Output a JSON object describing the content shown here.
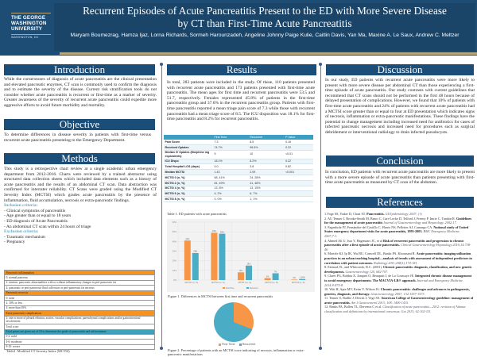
{
  "header": {
    "logo": {
      "line1": "THE GEORGE",
      "line2": "WASHINGTON",
      "line3": "UNIVERSITY",
      "line4": "WASHINGTON, DC"
    },
    "title_line1": "Recurrent Episodes of Acute Pancreatitis Present to the ED with More Severe Disease",
    "title_line2": "by CT than First-Time Acute Pancreatitis",
    "authors": "Maryam Boumezrag, Hamza Ijaz, Lorna Richards, Sormeh Harounzadeh, Angeline Johnny Paige Kulie, Caitlin Davis, Yan Ma, Maxine A. Le Saux,  Andrew C. Meltzer"
  },
  "introduction": {
    "heading": "Introduction",
    "text": "While the cornerstones of diagnosis of acute pancreatitis are the clinical presentation and elevated pancreatic enzymes, CT scan is commonly used to confirm the diagnosis and to estimate the severity of the disease. Current risk stratification tools do not consider whether acute pancreatitis is recurrent or first-time as a marker of severity.  Greater awareness of the severity of recurrent acute pancreatitis could expedite more aggressive efforts to avoid future morbidity and mortality."
  },
  "objective": {
    "heading": "Objective",
    "text": "To determine differences in disease severity in patients with first-time versus recurrent acute pancreatitis presenting to the Emergency Department."
  },
  "methods": {
    "heading": "Methods",
    "text": "This study is a retrospective chart review at a single academic urban emergency department from 2012-2016. Charts were reviewed by a trained abstractor using structured data collection sheets which included data elements such as a history of acute pancreatitis and the results of an abdominal CT scan. Data abstraction was confirmed for interrater reliability. CT Scans were graded using the Modified CT Severity Index (MCTSI) which grades acute pancreatitis by the presence of inflammation, fluid accumulation, necrosis or extra-pancreatic findings.",
    "inclusion_heading": "Inclusion criteria:",
    "inclusion": [
      "Clinical symptoms of pancreatitis",
      "Age greater than or equal to 18 years",
      "ED diagnosis of Acute Pancreatitis",
      "An abdominal CT scan within 24 hours of triage"
    ],
    "exclusion_heading": "Exclusion criteria:",
    "exclusion": [
      "Traumatic mechanism",
      "Pregnancy"
    ]
  },
  "mctsi_table": {
    "rows": [
      {
        "text": "Pancreatic inflammation",
        "style": "orange"
      },
      {
        "text": "0: normal pancreas",
        "style": ""
      },
      {
        "text": "2: intrinsic pancreatic abnormalities with or without inflammatory changes in peri-pancreatic fat",
        "style": ""
      },
      {
        "text": "4: pancreatic or peri-pancreatic fluid collection or peri-pancreatic fat necrosis",
        "style": ""
      },
      {
        "text": "Pancreatic necrosis",
        "style": "orange"
      },
      {
        "text": "0: none",
        "style": ""
      },
      {
        "text": "2: 30% or less",
        "style": ""
      },
      {
        "text": "4: more than 30%",
        "style": ""
      },
      {
        "text": "Extra-pancreatic complications",
        "style": "orange"
      },
      {
        "text": "2: one or more of pleural effusion, ascites, vascular complications, parenchymal complications and/or gastrointestinal involvement",
        "style": ""
      },
      {
        "text": "Total score",
        "style": ""
      },
      {
        "text": "Total points are given out of 10 to determine the grade of pancreatitis and aid treatment:",
        "style": "teal"
      },
      {
        "text": "0-2: mild",
        "style": ""
      },
      {
        "text": "4-6: moderate",
        "style": ""
      },
      {
        "text": "8-10: severe",
        "style": ""
      }
    ],
    "caption": "Table1. Modified CT Severity Index (MCTSI)"
  },
  "results": {
    "heading": "Results",
    "text": "In total, 283 patients were included in the study. Of these, 110 patients presented with recurrent acute pancreatitis and 173 patients presented with first-time acute pancreatitis. The mean ages for first time and recurrent pancreatitis were 53.5 and 51.7, respectively. Females represented 45.8% of patients in the first-time pancreatitis group and 37.6% in the recurrent pancreatitis group. Patients with first-time pancreatitis reported a mean triage pain score of 7.3 while those with recurrent pancreatitis had a mean triage score of 8.5. The ICU disposition was 18.1% for first-time pancreatitis and 8.2% for recurrent pancreatitis.",
    "table": {
      "headers": [
        "",
        "First Time",
        "Recurrent",
        "P Value"
      ],
      "rows": [
        [
          "Pain Score",
          "7.3",
          "8.5",
          "0.16"
        ],
        [
          "Received Opiates",
          "74.7%",
          "96.5%",
          "0.22"
        ],
        [
          "Median IV Opiates (Morphine mg equivalents)",
          "5",
          "10",
          "<0.01"
        ],
        [
          "ICU Dispo",
          "18.1%",
          "8.2%",
          "0.22"
        ],
        [
          "Total Hospital LOS (days)",
          "4.0",
          "3.8",
          "0.82"
        ],
        [
          "Median MCTSI",
          "1.43",
          "2.09",
          "<0.001"
        ],
        [
          "MCTSI 0 (n, %)",
          "68, 41%",
          "24, 28%",
          ""
        ],
        [
          "MCTSI 2 (n, %)",
          "81, 49%",
          "41, 48%",
          ""
        ],
        [
          "MCTSI 4 (n, %)",
          "13, 8%",
          "13, 15%",
          ""
        ],
        [
          "MCTSI 6 (n, %)",
          "4, 2%",
          "6, 7%",
          ""
        ],
        [
          "MCTSI 8 (n, %)",
          "0, 0%",
          "1, 1%",
          ""
        ]
      ],
      "caption": "Table 1. ED patients with acute pancreatitis"
    },
    "figure1_caption": "Figure 1. Differences in MCTSI between first time and recurrent pancreatitis",
    "figure2_caption": "Figure 2. Percentage of patients with an MCTSI score indicating of necrosis, inflammation or extra-pancreatic manifestations"
  },
  "discussion": {
    "heading": "Discussion",
    "text": "In our study, ED patients with recurrent acute pancreatitis were more likely to present with more severe disease per abdominal CT than those experiencing a first-time episode of acute pancreatitis. Our study contrasts with current guidelines that recommend that CT scans should not be performed in the first 48 hours because of delayed presentation of complications.  However, we found that 10% of patients with first-time acute pancreatitis and 24% of patients with recurrent acute pancreatitis had a MCTSI score greater than or equal to four at ED presentation which indicates signs of necrosis, inflammation or extra-pancreatic manifestations. These findings have the potential to change management including increased need for antibiotics for cases of infected pancreatic necrosis and increased need for procedures such as surgical debridement or interventional radiology to drain infected pseudocysts."
  },
  "conclusion": {
    "heading": "Conclusion",
    "text": "In conclusion, ED patients with recurrent acute pancreatitis are more likely to present with a more severe episode of acute pancreatitis than patients presenting with first-time acute pancreatitis as measured by CT scan of the abdomen."
  },
  "references": {
    "heading": "References",
    "items": [
      {
        "plain": "1.Yoge SS, Yadav D, Chari ST. ",
        "bold": "Pancreatitis.",
        "ital": " GI Epidemiology, 2007; (1)"
      },
      {
        "plain": "2. AU Tenner J, Brooke-Smith M, Banci C, Carr-Locke D, Telford J, Freeny P, Imrie C, Tandon R. ",
        "bold": "Guidelines for the management of acute pancreatitis",
        "ital": " Journal of Gastroenterology and Hepatology. 2002;17."
      },
      {
        "plain": "3. Fagenholz PJ, Fernández-del Castillo C, Harris NS, Pelletier AJ, Camargo CA. ",
        "bold": "National study of United States emergency department visits for acute pancreatitis, 1993-2003.",
        "ital": " BMC Emergency Medicine. 2007;7:1."
      },
      {
        "plain": "4. Ahmed Ali U, Issa Y, Hagenaars JC, et al ",
        "bold": "Risk of recurrent pancreatitis and progression to chronic pancreatitis after a first episode of acute pancreatitis.",
        "ital": " Clinical Gastroenterology Hepatology 2016;14:738-46"
      },
      {
        "plain": "6. Mortele KJ, Ip IK, Wu BU, Conwell DL, Banks PA, Khorasani R. ",
        "bold": "Acute pancreatitis: imaging utilization practices in an urban teaching hospital—analysis of trends with assessment of independent predictors in correlation with patient outcomes.",
        "ital": " Radiology 2011;258(1):174-181."
      },
      {
        "plain": "8. Etemad, B., and Whitcomb, D.C. (2001). ",
        "bold": "Chronic pancreatitis: diagnosis, classification, and new genetic developments.",
        "ital": " Gastroenterology 120, 682-707."
      },
      {
        "plain": "9. Claret PG, Bobbia X, Jonquet O, Beaupuit J, de La Coussaye JE. ",
        "bold": "Integrated chronic disease management to avoid emergency departments: The MACVIA-LR® approach.",
        "ital": " Internal and Emergency Medicine. 2014;9:875-8."
      },
      {
        "plain": "10. Witt H, Apte MV, Keim V, Wilson JS. ",
        "bold": "Chronic pancreatitis: challenges and advances in pathogenesis, genetics, diagnosis, and therapy.",
        "ital": " Gastroenterology 2007; 132:1557-1573."
      },
      {
        "plain": "11. Tenner S, Baillie J, Dewitt J, Vege SS. ",
        "bold": "American College of Gastroenterology guideline: management of acute pancreatitis.",
        "ital": " Am J Gastroenterol 2013; 108: 1400-1415."
      },
      {
        "plain": "12. Banks PA, Bollen TL, Dervenis C et al. ",
        "bold": "",
        "ital": "Classification of acute pancreatitis—2012: revision of Atlanta classification and definitions by international consensus. Gut 2013; 62:102-111."
      }
    ]
  },
  "colors": {
    "header": "#1d4c74",
    "section": "#1a4d78",
    "gold": "#b9a77a",
    "first_time": "#f79646",
    "recurrent": "#4bacc6",
    "table_orange": "#f7931d",
    "table_teal": "#3aa3bb"
  },
  "chart_data": [
    {
      "type": "bar",
      "title": "Figure 1. Differences in MCTSI between first time and recurrent pancreatitis",
      "categories": [
        "MCTSI 0 (n, %)",
        "MCTSI 2 (n, %)",
        "MCTSI 4 (n, %)",
        "MCTSI 6 (n, %)",
        "MCTSI 8 (n, %)"
      ],
      "series": [
        {
          "name": "First Time",
          "values": [
            41,
            49,
            8,
            2,
            0
          ],
          "labels": [
            "41%",
            "49%",
            "8%",
            "2%",
            "0%"
          ]
        },
        {
          "name": "Recurrent",
          "values": [
            28,
            48,
            15,
            7,
            1
          ],
          "labels": [
            "28%",
            "48%",
            "15%",
            "7%",
            "1.16%"
          ]
        }
      ],
      "ylim": [
        0,
        60
      ],
      "yticks": [
        "0%",
        "10%",
        "20%",
        "30%",
        "40%",
        "50%",
        "60%"
      ],
      "grid": true,
      "legend_position": "bottom"
    },
    {
      "type": "pie",
      "title": "Figure 2. Percentage of patients with an MCTSI score indicating of necrosis, inflammation or extra-pancreatic manifestations",
      "categories": [
        "First Time",
        "Recurrent"
      ],
      "values": [
        31,
        69
      ],
      "legend_position": "bottom"
    }
  ]
}
